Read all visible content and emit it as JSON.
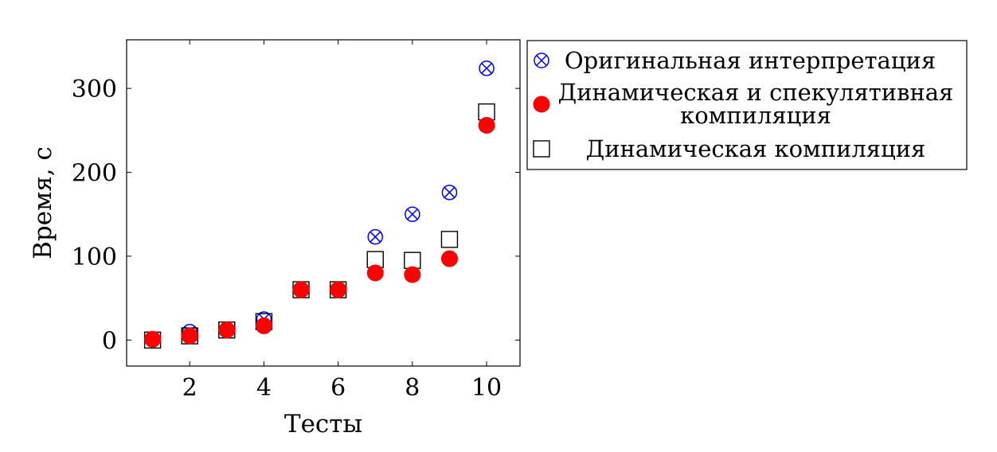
{
  "chart_data": {
    "type": "scatter",
    "xlabel": "Тесты",
    "ylabel": "Время, с",
    "xlim": [
      0.3,
      10.9
    ],
    "ylim": [
      -31,
      358
    ],
    "xticks": [
      2,
      4,
      6,
      8,
      10
    ],
    "yticks": [
      0,
      100,
      200,
      300
    ],
    "grid": false,
    "legend_position": "outside-right-top",
    "series": [
      {
        "name": "Оригинальная интерпретация",
        "marker": "circle-x",
        "color": "#0000ff",
        "x": [
          1,
          2,
          3,
          4,
          5,
          6,
          7,
          8,
          9,
          10
        ],
        "y": [
          1,
          10,
          12,
          25,
          60,
          60,
          123,
          150,
          176,
          324
        ]
      },
      {
        "name": "Динамическая и спекулятивная компиляция",
        "name_lines": [
          "Динамическая и спекулятивная",
          "компиляция"
        ],
        "marker": "filled-circle",
        "color": "#ff0000",
        "x": [
          1,
          2,
          3,
          4,
          5,
          6,
          7,
          8,
          9,
          10
        ],
        "y": [
          1,
          5,
          12,
          17,
          60,
          60,
          80,
          78,
          97,
          256
        ]
      },
      {
        "name": "Динамическая компиляция",
        "marker": "square",
        "color": "#000000",
        "x": [
          1,
          2,
          3,
          4,
          5,
          6,
          7,
          8,
          9,
          10
        ],
        "y": [
          0,
          5,
          12,
          22,
          60,
          60,
          96,
          95,
          120,
          272
        ]
      }
    ]
  }
}
